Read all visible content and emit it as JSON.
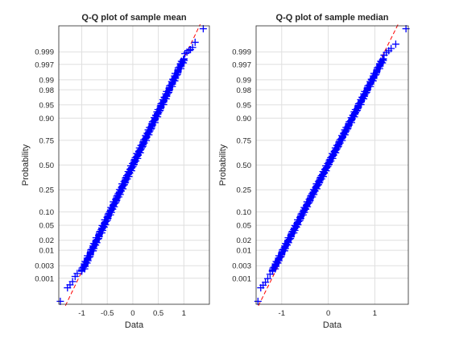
{
  "colors": {
    "marker": "#0000ff",
    "refline": "#ff0000",
    "grid": "#dfdfdf",
    "axis": "#262626",
    "background": "#ffffff"
  },
  "chart_data": [
    {
      "type": "scatter",
      "title": "Q-Q plot  of sample mean",
      "xlabel": "Data",
      "ylabel": "Probability",
      "xlim": [
        -1.45,
        1.5
      ],
      "ylim": [
        -3.8,
        3.8
      ],
      "y_scale": "normal-probability",
      "grid": true,
      "marker": "+",
      "x_ticks": [
        -1,
        -0.5,
        0,
        0.5,
        1
      ],
      "x_tick_labels": [
        "-1",
        "-0.5",
        "0",
        "0.5",
        "1"
      ],
      "y_tick_probabilities": [
        0.001,
        0.003,
        0.01,
        0.02,
        0.05,
        0.1,
        0.25,
        0.5,
        0.75,
        0.9,
        0.95,
        0.98,
        0.99,
        0.997,
        0.999
      ],
      "y_tick_labels": [
        "0.001",
        "0.003",
        "0.01",
        "0.02",
        "0.05",
        "0.10",
        "0.25",
        "0.50",
        "0.75",
        "0.90",
        "0.95",
        "0.98",
        "0.99",
        "0.997",
        "0.999"
      ],
      "reference_line": {
        "x": [
          -1.32,
          1.32
        ],
        "z": [
          -3.84,
          3.84
        ]
      },
      "points": {
        "tail_low": [
          [
            -1.42,
            -3.72
          ],
          [
            -1.28,
            -3.35
          ],
          [
            -1.23,
            -3.27
          ],
          [
            -1.18,
            -3.18
          ],
          [
            -1.13,
            -3.04
          ],
          [
            -1.09,
            -2.96
          ]
        ],
        "body": {
          "z_from": -2.9,
          "z_to": 2.9,
          "x_at_z_from": -1.0,
          "x_at_z_to": 1.0
        },
        "tail_high": [
          [
            1.02,
            3.04
          ],
          [
            1.06,
            3.08
          ],
          [
            1.1,
            3.13
          ],
          [
            1.13,
            3.15
          ],
          [
            1.17,
            3.21
          ],
          [
            1.22,
            3.35
          ],
          [
            1.38,
            3.72
          ]
        ]
      }
    },
    {
      "type": "scatter",
      "title": "Q-Q plot of sample median",
      "xlabel": "Data",
      "ylabel": "Probability",
      "xlim": [
        -1.55,
        1.72
      ],
      "ylim": [
        -3.8,
        3.8
      ],
      "y_scale": "normal-probability",
      "grid": true,
      "marker": "+",
      "x_ticks": [
        -1,
        0,
        1
      ],
      "x_tick_labels": [
        "-1",
        "0",
        "1"
      ],
      "y_tick_probabilities": [
        0.001,
        0.003,
        0.01,
        0.02,
        0.05,
        0.1,
        0.25,
        0.5,
        0.75,
        0.9,
        0.95,
        0.98,
        0.99,
        0.997,
        0.999
      ],
      "y_tick_labels": [
        "0.001",
        "0.003",
        "0.01",
        "0.02",
        "0.05",
        "0.10",
        "0.25",
        "0.50",
        "0.75",
        "0.90",
        "0.95",
        "0.98",
        "0.99",
        "0.997",
        "0.999"
      ],
      "reference_line": {
        "x": [
          -1.5,
          1.5
        ],
        "z": [
          -3.84,
          3.84
        ]
      },
      "points": {
        "tail_low": [
          [
            -1.51,
            -3.72
          ],
          [
            -1.45,
            -3.35
          ],
          [
            -1.4,
            -3.28
          ],
          [
            -1.35,
            -3.2
          ],
          [
            -1.3,
            -3.1
          ],
          [
            -1.25,
            -2.98
          ]
        ],
        "body": {
          "z_from": -2.9,
          "z_to": 2.9,
          "x_at_z_from": -1.2,
          "x_at_z_to": 1.18
        },
        "tail_high": [
          [
            1.2,
            3.0
          ],
          [
            1.25,
            3.07
          ],
          [
            1.3,
            3.12
          ],
          [
            1.35,
            3.18
          ],
          [
            1.45,
            3.3
          ],
          [
            1.67,
            3.72
          ]
        ]
      }
    }
  ]
}
